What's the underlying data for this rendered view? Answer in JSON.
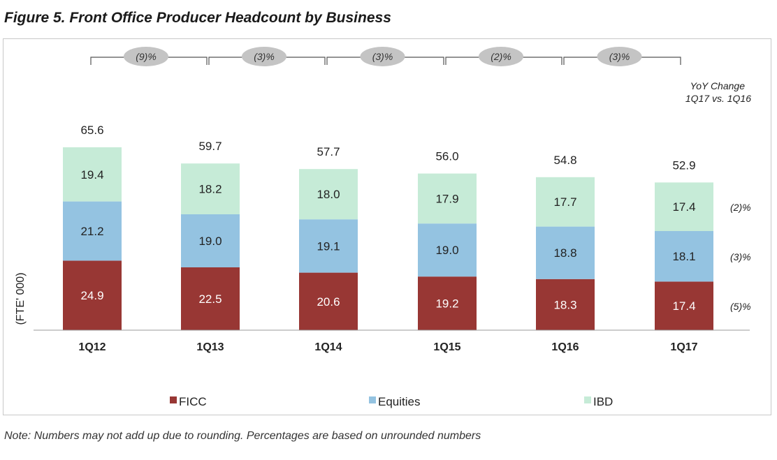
{
  "figure_title": "Figure 5. Front Office Producer Headcount by Business",
  "note": "Note: Numbers may not add up due to rounding. Percentages are based on unrounded numbers",
  "colors": {
    "FICC": "#983734",
    "Equities": "#94c3e1",
    "IBD": "#c6ebd7"
  },
  "chart_data": {
    "type": "bar",
    "stacked": true,
    "title": "Figure 5. Front Office Producer Headcount by Business",
    "ylabel": "(FTE' 000)",
    "xlabel": "",
    "ylim": [
      0,
      70
    ],
    "categories": [
      "1Q12",
      "1Q13",
      "1Q14",
      "1Q15",
      "1Q16",
      "1Q17"
    ],
    "series": [
      {
        "name": "FICC",
        "values": [
          24.9,
          22.5,
          20.6,
          19.2,
          18.3,
          17.4
        ]
      },
      {
        "name": "Equities",
        "values": [
          21.2,
          19.0,
          19.1,
          19.0,
          18.8,
          18.1
        ]
      },
      {
        "name": "IBD",
        "values": [
          19.4,
          18.2,
          18.0,
          17.9,
          17.7,
          17.4
        ]
      }
    ],
    "totals": [
      "65.6",
      "59.7",
      "57.7",
      "56.0",
      "54.8",
      "52.9"
    ],
    "yoy_brackets": [
      "(9)%",
      "(3)%",
      "(3)%",
      "(2)%",
      "(3)%"
    ],
    "yoy_header": [
      "YoY Change",
      "1Q17 vs. 1Q16"
    ],
    "yoy_by_series": {
      "IBD": "(2)%",
      "Equities": "(3)%",
      "FICC": "(5)%"
    },
    "legend": [
      "FICC",
      "Equities",
      "IBD"
    ],
    "legend_position": "bottom"
  }
}
